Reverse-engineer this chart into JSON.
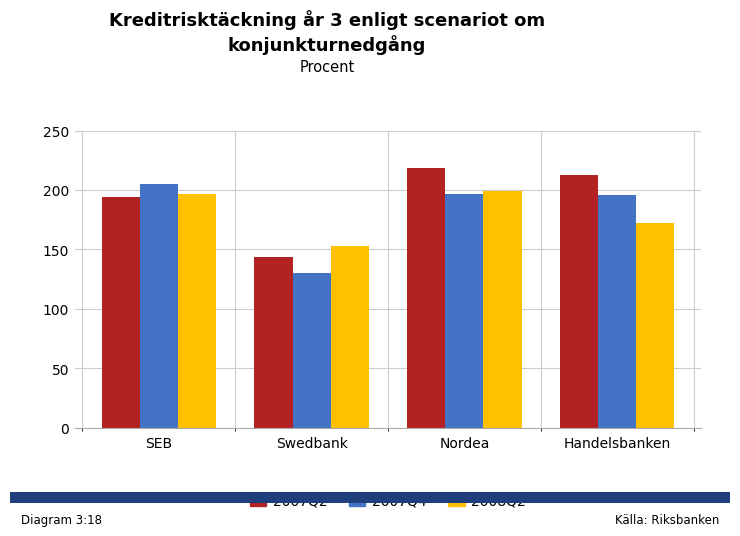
{
  "title_line1": "Kreditrisktäckning år 3 enligt scenariot om",
  "title_line2": "konjunkturnedgång",
  "subtitle": "Procent",
  "categories": [
    "SEB",
    "Swedbank",
    "Nordea",
    "Handelsbanken"
  ],
  "series": {
    "2007Q2": [
      194,
      144,
      219,
      213
    ],
    "2007Q4": [
      205,
      130,
      197,
      196
    ],
    "2008Q2": [
      197,
      153,
      199,
      172
    ]
  },
  "colors": {
    "2007Q2": "#B22222",
    "2007Q4": "#4472C4",
    "2008Q2": "#FFC000"
  },
  "ylim": [
    0,
    250
  ],
  "yticks": [
    0,
    50,
    100,
    150,
    200,
    250
  ],
  "legend_labels": [
    "2007Q2",
    "2007Q4",
    "2008Q2"
  ],
  "diagram_label": "Diagram 3:18",
  "source_label": "Källa: Riksbanken",
  "background_color": "#FFFFFF",
  "footer_bar_color": "#1F3E7C",
  "grid_color": "#CCCCCC"
}
